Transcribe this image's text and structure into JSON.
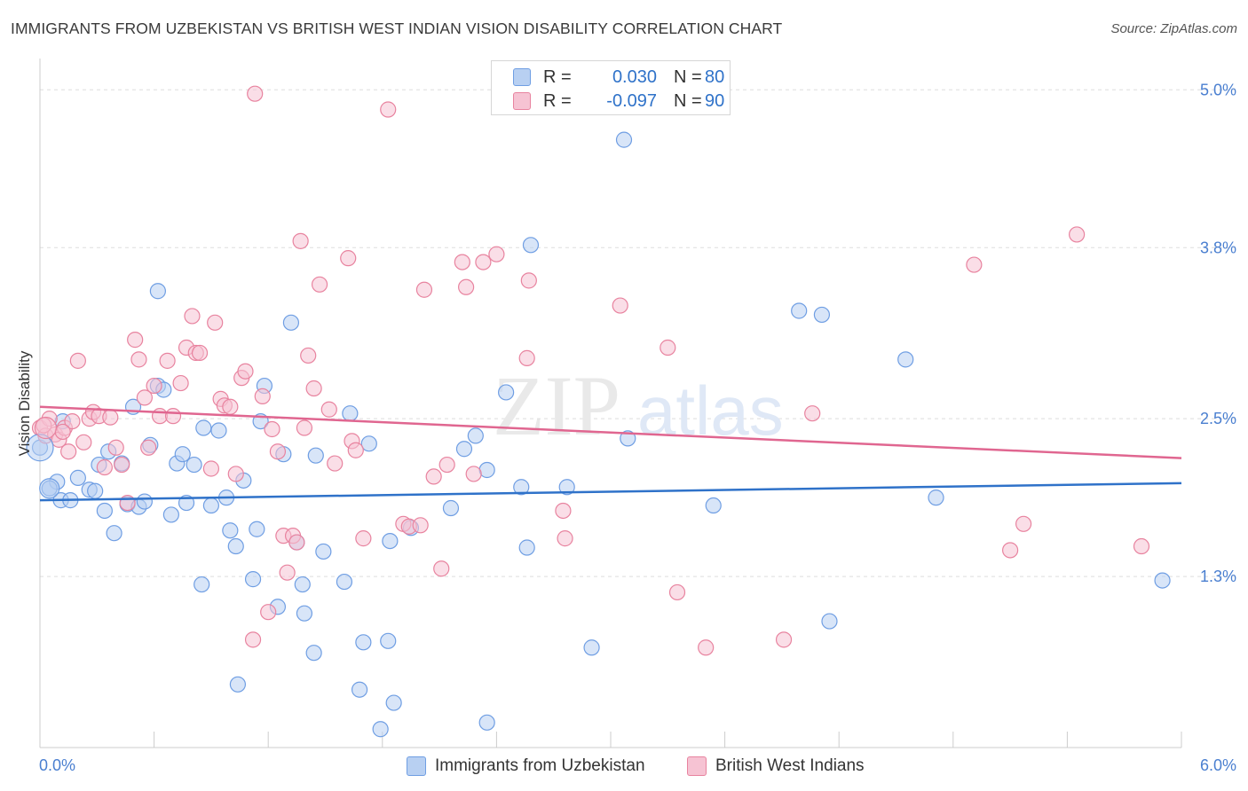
{
  "header": {
    "title": "IMMIGRANTS FROM UZBEKISTAN VS BRITISH WEST INDIAN VISION DISABILITY CORRELATION CHART",
    "source": "Source: ZipAtlas.com"
  },
  "watermark": {
    "part1": "ZIP",
    "part2": "atlas"
  },
  "legend": {
    "r_label": "R =",
    "n_label": "N =",
    "series": [
      {
        "name": "Immigrants from Uzbekistan",
        "r": "0.030",
        "n": "80"
      },
      {
        "name": "British West Indians",
        "r": "-0.097",
        "n": "90"
      }
    ]
  },
  "colors": {
    "blue_fill": "#b8d0f2",
    "blue_stroke": "#6f9ee3",
    "blue_line": "#2f72c9",
    "pink_fill": "#f6c3d3",
    "pink_stroke": "#e8839f",
    "pink_line": "#e06690",
    "axis_text": "#4a7fd0",
    "grid": "#dddddd"
  },
  "chart_data": {
    "type": "scatter",
    "title": "IMMIGRANTS FROM UZBEKISTAN VS BRITISH WEST INDIAN VISION DISABILITY CORRELATION CHART",
    "xlabel": "",
    "ylabel": "Vision Disability",
    "x_ticks": [
      "0.0%",
      "6.0%"
    ],
    "y_ticks": [
      "5.0%",
      "3.8%",
      "2.5%",
      "1.3%"
    ],
    "xlim": [
      0,
      6
    ],
    "ylim": [
      0,
      5.15
    ],
    "grid": true,
    "legend_position": "top-center",
    "series": [
      {
        "name": "Immigrants from Uzbekistan",
        "color": "blue",
        "trend": [
          [
            0,
            1.88
          ],
          [
            6,
            2.01
          ]
        ],
        "points": [
          [
            0.0,
            2.28
          ],
          [
            0.05,
            1.97
          ],
          [
            0.09,
            2.02
          ],
          [
            0.11,
            1.88
          ],
          [
            0.12,
            2.48
          ],
          [
            0.16,
            1.88
          ],
          [
            0.2,
            2.05
          ],
          [
            0.26,
            1.96
          ],
          [
            0.29,
            1.95
          ],
          [
            0.31,
            2.15
          ],
          [
            0.34,
            1.8
          ],
          [
            0.36,
            2.25
          ],
          [
            0.39,
            1.63
          ],
          [
            0.43,
            2.16
          ],
          [
            0.46,
            1.85
          ],
          [
            0.49,
            2.59
          ],
          [
            0.52,
            1.83
          ],
          [
            0.55,
            1.87
          ],
          [
            0.58,
            2.3
          ],
          [
            0.62,
            3.47
          ],
          [
            0.62,
            2.75
          ],
          [
            0.65,
            2.72
          ],
          [
            0.69,
            1.77
          ],
          [
            0.72,
            2.16
          ],
          [
            0.75,
            2.23
          ],
          [
            0.77,
            1.86
          ],
          [
            0.81,
            2.15
          ],
          [
            0.85,
            1.24
          ],
          [
            0.86,
            2.43
          ],
          [
            0.9,
            1.84
          ],
          [
            0.94,
            2.41
          ],
          [
            0.98,
            1.9
          ],
          [
            1.0,
            1.65
          ],
          [
            1.03,
            1.53
          ],
          [
            1.04,
            0.48
          ],
          [
            1.07,
            2.03
          ],
          [
            1.12,
            1.28
          ],
          [
            1.14,
            1.66
          ],
          [
            1.16,
            2.48
          ],
          [
            1.18,
            2.75
          ],
          [
            1.25,
            1.07
          ],
          [
            1.28,
            2.23
          ],
          [
            1.32,
            3.23
          ],
          [
            1.35,
            1.56
          ],
          [
            1.38,
            1.24
          ],
          [
            1.39,
            1.02
          ],
          [
            1.44,
            0.72
          ],
          [
            1.45,
            2.22
          ],
          [
            1.49,
            1.49
          ],
          [
            1.6,
            1.26
          ],
          [
            1.63,
            2.54
          ],
          [
            1.68,
            0.44
          ],
          [
            1.7,
            0.8
          ],
          [
            1.73,
            2.31
          ],
          [
            1.79,
            0.14
          ],
          [
            1.83,
            0.81
          ],
          [
            1.84,
            1.57
          ],
          [
            1.86,
            0.34
          ],
          [
            1.95,
            1.67
          ],
          [
            2.16,
            1.82
          ],
          [
            2.23,
            2.27
          ],
          [
            2.29,
            2.37
          ],
          [
            2.35,
            2.11
          ],
          [
            2.35,
            0.19
          ],
          [
            2.45,
            2.7
          ],
          [
            2.53,
            1.98
          ],
          [
            2.56,
            1.52
          ],
          [
            2.58,
            3.82
          ],
          [
            2.77,
            1.98
          ],
          [
            2.9,
            0.76
          ],
          [
            3.07,
            4.62
          ],
          [
            3.09,
            2.35
          ],
          [
            3.54,
            1.84
          ],
          [
            3.99,
            3.32
          ],
          [
            4.11,
            3.29
          ],
          [
            4.15,
            0.96
          ],
          [
            4.55,
            2.95
          ],
          [
            4.71,
            1.9
          ],
          [
            5.9,
            1.27
          ],
          [
            0.05,
            1.97
          ]
        ]
      },
      {
        "name": "British West Indians",
        "color": "pink",
        "trend": [
          [
            0,
            2.59
          ],
          [
            6,
            2.2
          ]
        ],
        "points": [
          [
            0.0,
            2.43
          ],
          [
            0.03,
            2.37
          ],
          [
            0.05,
            2.5
          ],
          [
            0.08,
            2.38
          ],
          [
            0.1,
            2.34
          ],
          [
            0.13,
            2.43
          ],
          [
            0.15,
            2.25
          ],
          [
            0.17,
            2.48
          ],
          [
            0.2,
            2.94
          ],
          [
            0.23,
            2.32
          ],
          [
            0.26,
            2.5
          ],
          [
            0.28,
            2.55
          ],
          [
            0.31,
            2.52
          ],
          [
            0.34,
            2.13
          ],
          [
            0.37,
            2.51
          ],
          [
            0.4,
            2.28
          ],
          [
            0.43,
            2.15
          ],
          [
            0.46,
            1.86
          ],
          [
            0.5,
            3.1
          ],
          [
            0.52,
            2.95
          ],
          [
            0.55,
            2.66
          ],
          [
            0.57,
            2.28
          ],
          [
            0.6,
            2.75
          ],
          [
            0.63,
            2.52
          ],
          [
            0.67,
            2.94
          ],
          [
            0.7,
            2.52
          ],
          [
            0.74,
            2.77
          ],
          [
            0.77,
            3.04
          ],
          [
            0.8,
            3.28
          ],
          [
            0.82,
            3.0
          ],
          [
            0.84,
            3.0
          ],
          [
            0.9,
            2.12
          ],
          [
            0.92,
            3.23
          ],
          [
            0.95,
            2.65
          ],
          [
            0.97,
            2.6
          ],
          [
            1.0,
            2.59
          ],
          [
            1.03,
            2.08
          ],
          [
            1.06,
            2.81
          ],
          [
            1.08,
            2.86
          ],
          [
            1.12,
            0.82
          ],
          [
            1.13,
            4.97
          ],
          [
            1.17,
            2.67
          ],
          [
            1.2,
            1.03
          ],
          [
            1.22,
            2.42
          ],
          [
            1.25,
            2.25
          ],
          [
            1.28,
            1.61
          ],
          [
            1.3,
            1.33
          ],
          [
            1.33,
            1.61
          ],
          [
            1.35,
            1.56
          ],
          [
            1.37,
            3.85
          ],
          [
            1.39,
            2.43
          ],
          [
            1.41,
            2.98
          ],
          [
            1.44,
            2.73
          ],
          [
            1.47,
            3.52
          ],
          [
            1.52,
            2.57
          ],
          [
            1.55,
            2.16
          ],
          [
            1.62,
            3.72
          ],
          [
            1.64,
            2.33
          ],
          [
            1.66,
            2.26
          ],
          [
            1.7,
            1.59
          ],
          [
            1.83,
            4.85
          ],
          [
            1.91,
            1.7
          ],
          [
            1.94,
            1.68
          ],
          [
            2.0,
            1.69
          ],
          [
            2.02,
            3.48
          ],
          [
            2.07,
            2.06
          ],
          [
            2.11,
            1.36
          ],
          [
            2.14,
            2.15
          ],
          [
            2.22,
            3.69
          ],
          [
            2.24,
            3.5
          ],
          [
            2.28,
            2.08
          ],
          [
            2.33,
            3.69
          ],
          [
            2.4,
            3.75
          ],
          [
            2.56,
            2.96
          ],
          [
            2.57,
            3.55
          ],
          [
            2.75,
            1.8
          ],
          [
            2.76,
            1.59
          ],
          [
            3.05,
            3.36
          ],
          [
            3.3,
            3.04
          ],
          [
            3.35,
            1.18
          ],
          [
            3.5,
            0.76
          ],
          [
            3.91,
            0.82
          ],
          [
            4.06,
            2.54
          ],
          [
            4.91,
            3.67
          ],
          [
            5.1,
            1.5
          ],
          [
            5.17,
            1.7
          ],
          [
            5.45,
            3.9
          ],
          [
            5.79,
            1.53
          ],
          [
            0.02,
            2.45
          ],
          [
            0.12,
            2.4
          ]
        ]
      }
    ]
  }
}
